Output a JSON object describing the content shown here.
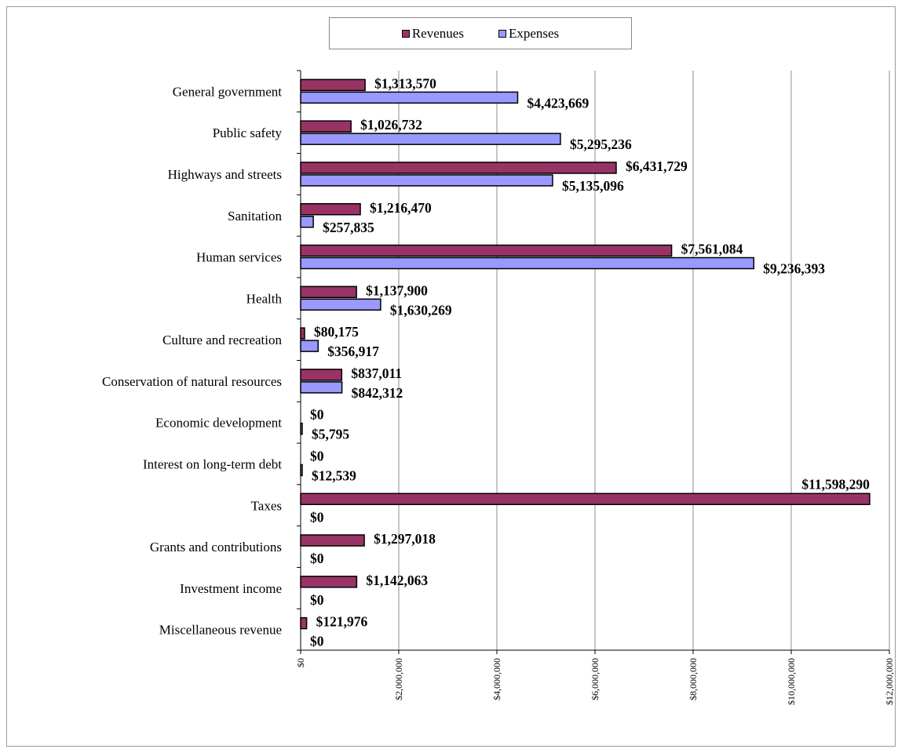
{
  "chart_data": {
    "type": "bar",
    "orientation": "horizontal",
    "title": "",
    "xlabel": "",
    "ylabel": "",
    "xlim": [
      0,
      12000000
    ],
    "grid": "vertical",
    "legend_position": "top-center",
    "categories": [
      "General government",
      "Public safety",
      "Highways and streets",
      "Sanitation",
      "Human services",
      "Health",
      "Culture and recreation",
      "Conservation of natural resources",
      "Economic development",
      "Interest on long-term debt",
      "Taxes",
      "Grants and contributions",
      "Investment income",
      "Miscellaneous revenue"
    ],
    "series": [
      {
        "name": "Revenues",
        "color": "#993366",
        "values": [
          1313570,
          1026732,
          6431729,
          1216470,
          7561084,
          1137900,
          80175,
          837011,
          0,
          0,
          11598290,
          1297018,
          1142063,
          121976
        ],
        "labels": [
          "$1,313,570",
          "$1,026,732",
          "$6,431,729",
          "$1,216,470",
          "$7,561,084",
          "$1,137,900",
          "$80,175",
          "$837,011",
          "$0",
          "$0",
          "$11,598,290",
          "$1,297,018",
          "$1,142,063",
          "$121,976"
        ]
      },
      {
        "name": "Expenses",
        "color": "#9999ff",
        "values": [
          4423669,
          5295236,
          5135096,
          257835,
          9236393,
          1630269,
          356917,
          842312,
          5795,
          12539,
          0,
          0,
          0,
          0
        ],
        "labels": [
          "$4,423,669",
          "$5,295,236",
          "$5,135,096",
          "$257,835",
          "$9,236,393",
          "$1,630,269",
          "$356,917",
          "$842,312",
          "$5,795",
          "$12,539",
          "$0",
          "$0",
          "$0",
          "$0"
        ]
      }
    ],
    "x_ticks": [
      0,
      2000000,
      4000000,
      6000000,
      8000000,
      10000000,
      12000000
    ],
    "x_tick_labels": [
      "$0",
      "$2,000,000",
      "$4,000,000",
      "$6,000,000",
      "$8,000,000",
      "$10,000,000",
      "$12,000,000"
    ]
  }
}
